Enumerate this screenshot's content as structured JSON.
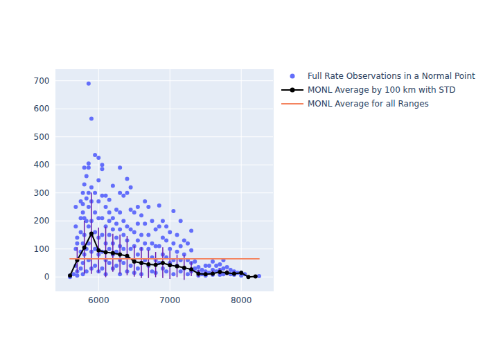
{
  "chart_data": {
    "type": "scatter",
    "xlim": [
      5400,
      8450
    ],
    "xticks": [
      6000,
      7000,
      8000
    ],
    "ylim": [
      -50,
      740
    ],
    "yticks": [
      0,
      100,
      200,
      300,
      400,
      500,
      600,
      700
    ],
    "grid": true,
    "legend": "right",
    "series": [
      {
        "name": "Full Rate Observations in a Normal Point",
        "type": "scatter",
        "color": "#636efa",
        "marker": "circle",
        "x": [
          5600,
          5600,
          5650,
          5680,
          5680,
          5680,
          5680,
          5700,
          5700,
          5700,
          5700,
          5700,
          5750,
          5750,
          5750,
          5750,
          5750,
          5780,
          5780,
          5780,
          5780,
          5780,
          5780,
          5800,
          5800,
          5800,
          5800,
          5800,
          5830,
          5830,
          5830,
          5830,
          5830,
          5860,
          5860,
          5860,
          5860,
          5860,
          5860,
          5860,
          5860,
          5900,
          5900,
          5900,
          5900,
          5900,
          5900,
          5900,
          5950,
          5950,
          5950,
          5950,
          5950,
          5950,
          6000,
          6000,
          6000,
          6000,
          6000,
          6000,
          6000,
          6050,
          6050,
          6050,
          6050,
          6050,
          6050,
          6050,
          6100,
          6100,
          6100,
          6100,
          6100,
          6100,
          6150,
          6150,
          6150,
          6150,
          6150,
          6150,
          6200,
          6200,
          6200,
          6200,
          6200,
          6200,
          6250,
          6250,
          6250,
          6250,
          6250,
          6300,
          6300,
          6300,
          6300,
          6300,
          6300,
          6300,
          6350,
          6350,
          6350,
          6350,
          6350,
          6400,
          6400,
          6400,
          6400,
          6400,
          6400,
          6450,
          6450,
          6450,
          6450,
          6450,
          6500,
          6500,
          6500,
          6500,
          6500,
          6550,
          6550,
          6550,
          6550,
          6550,
          6600,
          6600,
          6600,
          6600,
          6600,
          6650,
          6650,
          6650,
          6650,
          6700,
          6700,
          6700,
          6700,
          6750,
          6750,
          6750,
          6750,
          6800,
          6800,
          6800,
          6800,
          6850,
          6850,
          6850,
          6850,
          6900,
          6900,
          6900,
          6900,
          6950,
          6950,
          6950,
          6950,
          7000,
          7000,
          7000,
          7050,
          7050,
          7050,
          7050,
          7100,
          7100,
          7100,
          7150,
          7150,
          7150,
          7150,
          7200,
          7200,
          7200,
          7250,
          7250,
          7250,
          7300,
          7300,
          7300,
          7300,
          7350,
          7350,
          7400,
          7400,
          7400,
          7450,
          7450,
          7500,
          7500,
          7500,
          7550,
          7550,
          7600,
          7600,
          7600,
          7650,
          7650,
          7700,
          7700,
          7700,
          7750,
          7750,
          7750,
          7800,
          7800,
          7850,
          7850,
          7900,
          7900,
          7950,
          8000,
          8000,
          8050,
          8250
        ],
        "values": [
          0,
          5,
          10,
          100,
          250,
          180,
          40,
          140,
          120,
          60,
          20,
          5,
          270,
          210,
          160,
          90,
          30,
          300,
          260,
          230,
          120,
          50,
          10,
          390,
          330,
          210,
          150,
          80,
          360,
          280,
          200,
          100,
          20,
          690,
          405,
          390,
          300,
          250,
          180,
          120,
          60,
          565,
          320,
          270,
          200,
          150,
          90,
          30,
          435,
          300,
          230,
          160,
          100,
          40,
          425,
          345,
          270,
          210,
          140,
          80,
          20,
          400,
          385,
          290,
          210,
          150,
          90,
          30,
          290,
          250,
          180,
          120,
          60,
          10,
          275,
          230,
          200,
          150,
          100,
          50,
          325,
          210,
          170,
          120,
          80,
          30,
          240,
          190,
          140,
          90,
          40,
          390,
          300,
          230,
          170,
          110,
          60,
          10,
          290,
          200,
          150,
          100,
          50,
          350,
          300,
          180,
          130,
          70,
          20,
          320,
          240,
          170,
          100,
          40,
          230,
          160,
          110,
          60,
          15,
          250,
          190,
          130,
          80,
          30,
          220,
          150,
          100,
          50,
          10,
          270,
          190,
          120,
          60,
          250,
          150,
          100,
          40,
          200,
          120,
          70,
          20,
          170,
          110,
          60,
          15,
          255,
          180,
          110,
          50,
          200,
          140,
          80,
          30,
          180,
          130,
          70,
          20,
          160,
          100,
          50,
          235,
          120,
          60,
          10,
          150,
          90,
          40,
          200,
          110,
          60,
          20,
          130,
          80,
          30,
          120,
          60,
          10,
          165,
          95,
          50,
          20,
          55,
          30,
          35,
          20,
          5,
          25,
          10,
          40,
          20,
          5,
          40,
          15,
          55,
          25,
          8,
          40,
          20,
          45,
          25,
          8,
          60,
          30,
          10,
          35,
          15,
          25,
          10,
          20,
          8,
          15,
          15,
          5,
          10,
          3
        ]
      },
      {
        "name": "MONL Average by 100 km with STD",
        "type": "line",
        "color": "#000000",
        "marker": "circle",
        "x": [
          5600,
          5700,
          5800,
          5900,
          6000,
          6100,
          6200,
          6300,
          6400,
          6500,
          6600,
          6700,
          6800,
          6900,
          7000,
          7100,
          7200,
          7300,
          7400,
          7500,
          7600,
          7700,
          7800,
          7900,
          8000,
          8100,
          8200
        ],
        "values": [
          5,
          60,
          105,
          155,
          95,
          88,
          85,
          80,
          75,
          55,
          50,
          45,
          43,
          50,
          42,
          38,
          33,
          27,
          12,
          10,
          12,
          18,
          15,
          12,
          15,
          0,
          2
        ],
        "std": [
          3,
          45,
          95,
          145,
          80,
          90,
          68,
          70,
          70,
          55,
          55,
          50,
          45,
          55,
          50,
          40,
          45,
          25,
          12,
          8,
          10,
          12,
          10,
          8,
          5,
          0,
          2
        ]
      },
      {
        "name": "MONL Average for all Ranges",
        "type": "line",
        "color": "#f4845f",
        "line_style": "solid",
        "x": [
          5600,
          8250
        ],
        "values": [
          65,
          65
        ]
      }
    ]
  }
}
